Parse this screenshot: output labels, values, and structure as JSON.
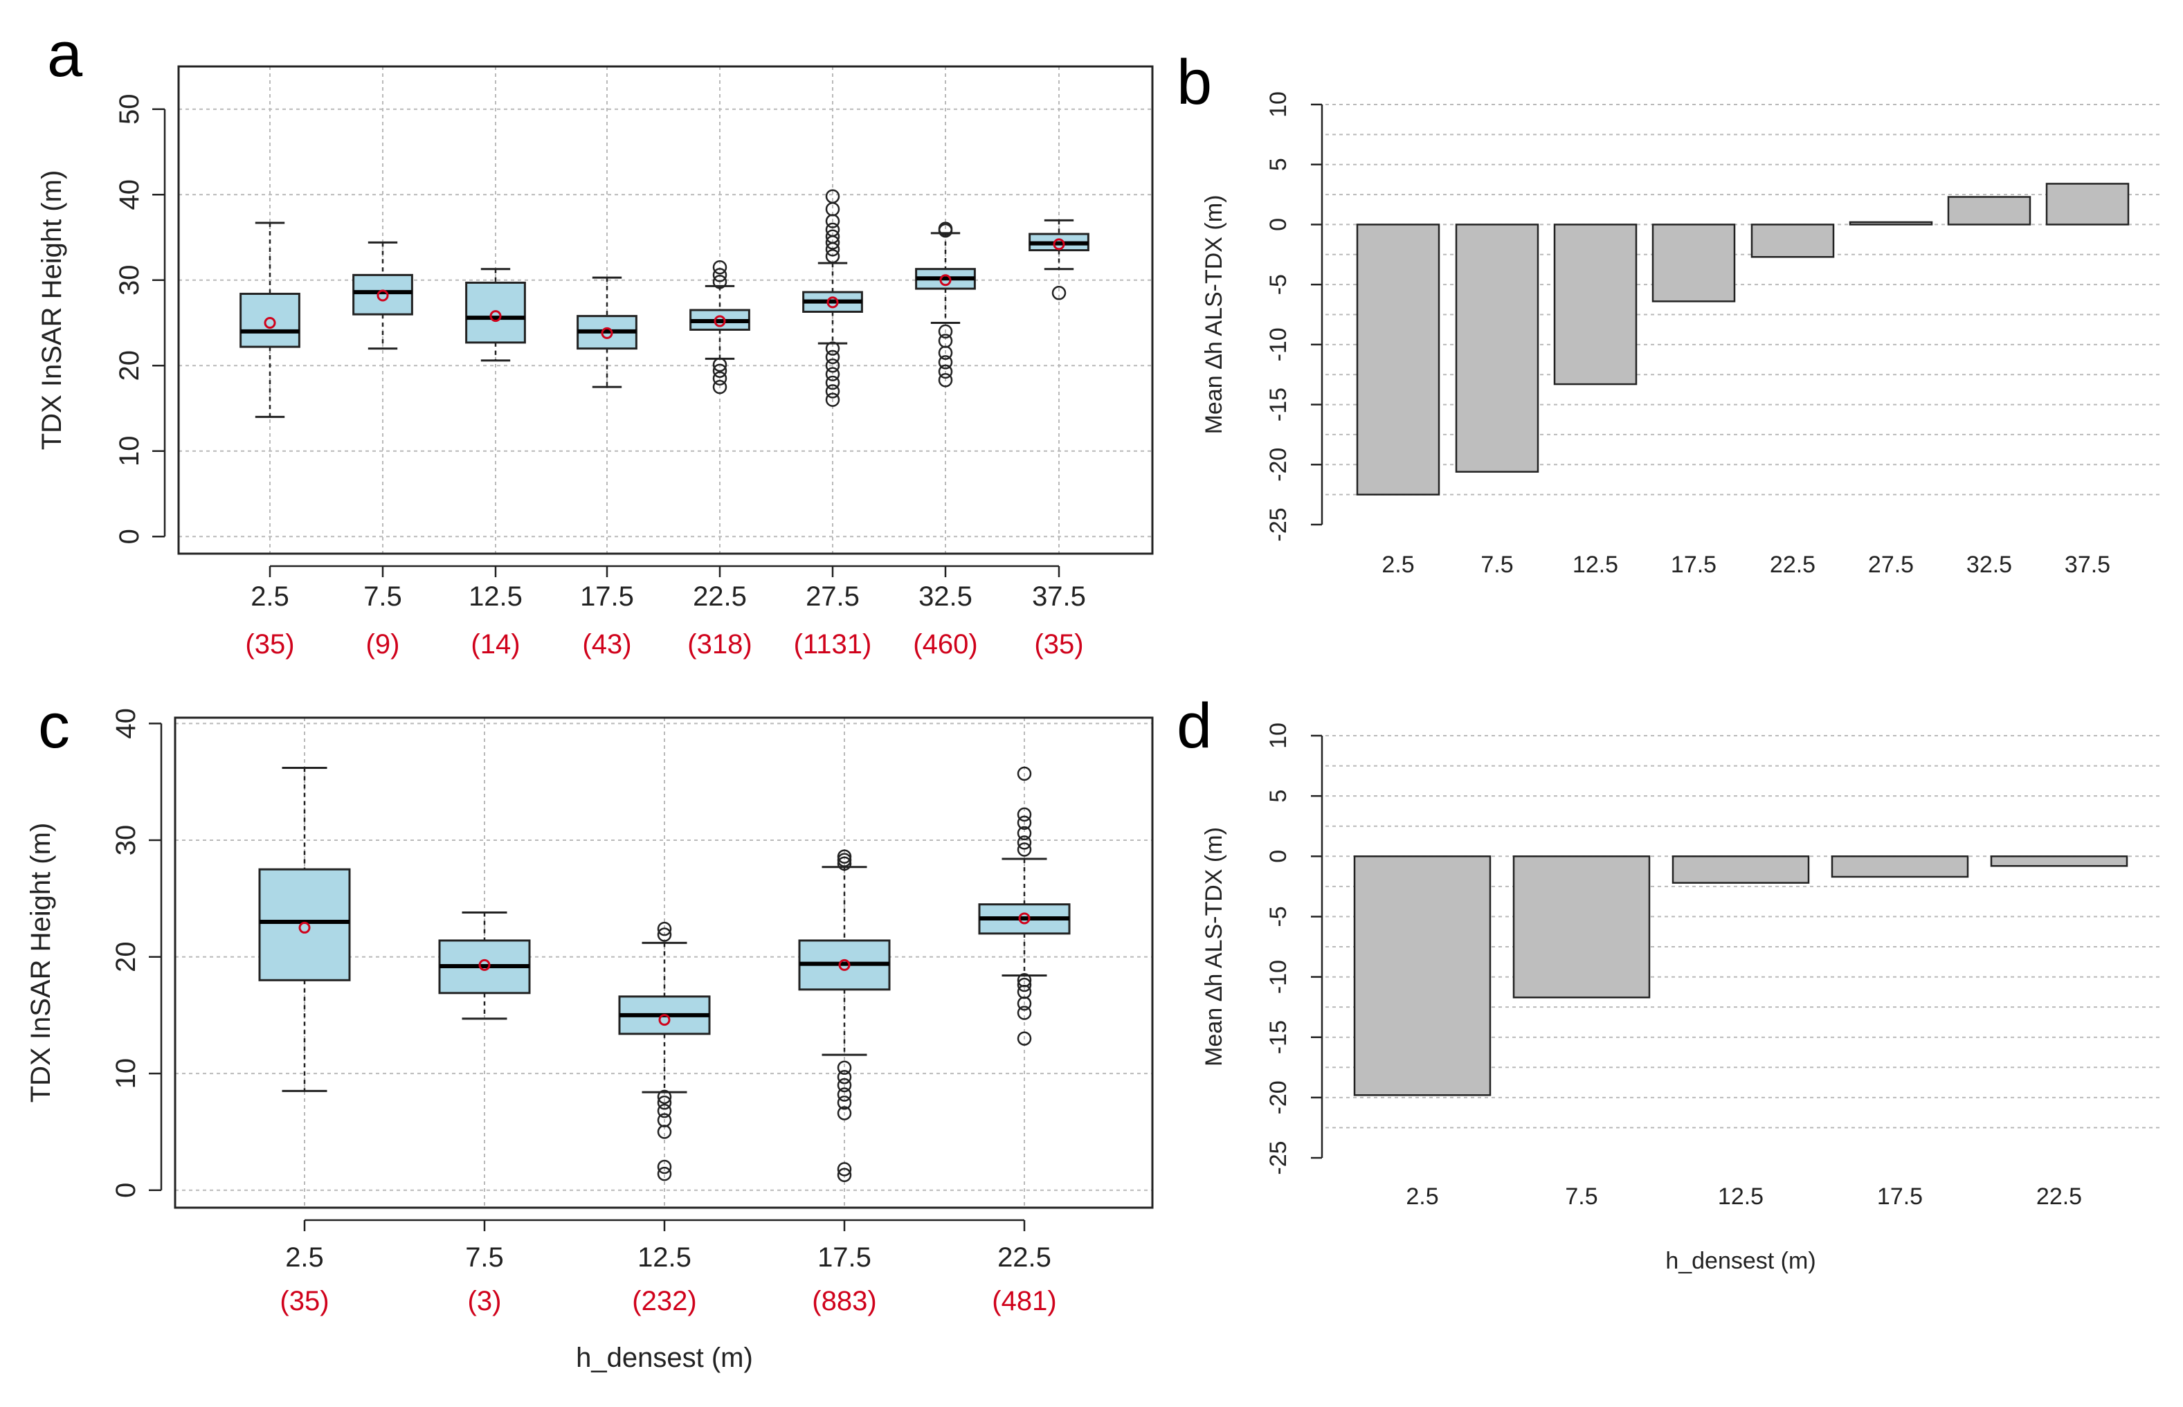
{
  "panel_labels": [
    "a",
    "b",
    "c",
    "d"
  ],
  "colors": {
    "box_fill": "#add8e6",
    "mean_marker": "#d0021b",
    "count_text": "#d0021b",
    "bar_fill": "#bebebe"
  },
  "chart_data": [
    {
      "id": "a",
      "type": "box",
      "title": "",
      "xlabel": "",
      "ylabel": "TDX InSAR Height (m)",
      "ylim": [
        -2,
        55
      ],
      "yticks": [
        0,
        10,
        20,
        30,
        40,
        50
      ],
      "grid": true,
      "categories": [
        "2.5",
        "7.5",
        "12.5",
        "17.5",
        "22.5",
        "27.5",
        "32.5",
        "37.5"
      ],
      "counts": [
        "(35)",
        "(9)",
        "(14)",
        "(43)",
        "(318)",
        "(1131)",
        "(460)",
        "(35)"
      ],
      "boxes": [
        {
          "min": 14,
          "q1": 22.2,
          "median": 24,
          "q3": 28.4,
          "max": 36.7,
          "mean": 25,
          "outliers": []
        },
        {
          "min": 22,
          "q1": 26,
          "median": 28.6,
          "q3": 30.6,
          "max": 34.4,
          "mean": 28.2,
          "outliers": []
        },
        {
          "min": 20.6,
          "q1": 22.7,
          "median": 25.6,
          "q3": 29.7,
          "max": 31.3,
          "mean": 25.8,
          "outliers": []
        },
        {
          "min": 17.5,
          "q1": 22,
          "median": 24,
          "q3": 25.8,
          "max": 30.3,
          "mean": 23.8,
          "outliers": []
        },
        {
          "min": 20.8,
          "q1": 24.2,
          "median": 25.2,
          "q3": 26.5,
          "max": 29.3,
          "mean": 25.2,
          "outliers": [
            17.5,
            18.5,
            19.4,
            20.1,
            29.8,
            30.6,
            31.5
          ]
        },
        {
          "min": 22.6,
          "q1": 26.3,
          "median": 27.5,
          "q3": 28.6,
          "max": 32,
          "mean": 27.4,
          "outliers": [
            16,
            17,
            18,
            19,
            20,
            21,
            22,
            32.8,
            33.6,
            34.4,
            35.1,
            35.9,
            36.9,
            38.3,
            39.8
          ]
        },
        {
          "min": 25,
          "q1": 29,
          "median": 30.2,
          "q3": 31.3,
          "max": 35.5,
          "mean": 30,
          "outliers": [
            18.3,
            19.3,
            20.4,
            21.5,
            22.9,
            24,
            35.8,
            36
          ]
        },
        {
          "min": 31.3,
          "q1": 33.5,
          "median": 34.3,
          "q3": 35.4,
          "max": 37,
          "mean": 34.2,
          "outliers": [
            28.5
          ]
        }
      ]
    },
    {
      "id": "b",
      "type": "bar",
      "title": "",
      "xlabel": "",
      "ylabel": "Mean ∆h ALS-TDX (m)",
      "ylim": [
        -25,
        10
      ],
      "yticks": [
        -25,
        -20,
        -15,
        -10,
        -5,
        0,
        5,
        10
      ],
      "grid": true,
      "categories": [
        "2.5",
        "7.5",
        "12.5",
        "17.5",
        "22.5",
        "27.5",
        "32.5",
        "37.5"
      ],
      "values": [
        -22.5,
        -20.6,
        -13.3,
        -6.4,
        -2.7,
        0.2,
        2.3,
        3.4
      ]
    },
    {
      "id": "c",
      "type": "box",
      "title": "",
      "xlabel": "h_densest (m)",
      "ylabel": "TDX InSAR Height (m)",
      "ylim": [
        -1.5,
        40.5
      ],
      "yticks": [
        0,
        10,
        20,
        30,
        40
      ],
      "grid": true,
      "categories": [
        "2.5",
        "7.5",
        "12.5",
        "17.5",
        "22.5"
      ],
      "counts": [
        "(35)",
        "(3)",
        "(232)",
        "(883)",
        "(481)"
      ],
      "boxes": [
        {
          "min": 8.5,
          "q1": 18,
          "median": 23,
          "q3": 27.5,
          "max": 36.2,
          "mean": 22.5,
          "outliers": []
        },
        {
          "min": 14.7,
          "q1": 16.9,
          "median": 19.2,
          "q3": 21.4,
          "max": 23.8,
          "mean": 19.3,
          "outliers": []
        },
        {
          "min": 8.4,
          "q1": 13.4,
          "median": 15,
          "q3": 16.6,
          "max": 21.2,
          "mean": 14.6,
          "outliers": [
            1.4,
            2,
            5,
            6,
            6.8,
            7.5,
            8,
            21.9,
            22.4
          ]
        },
        {
          "min": 11.6,
          "q1": 17.2,
          "median": 19.4,
          "q3": 21.4,
          "max": 27.7,
          "mean": 19.3,
          "outliers": [
            1.3,
            1.8,
            6.6,
            7.5,
            8.2,
            9,
            9.7,
            10.5,
            28,
            28.3,
            28.6
          ]
        },
        {
          "min": 18.4,
          "q1": 22,
          "median": 23.3,
          "q3": 24.5,
          "max": 28.4,
          "mean": 23.3,
          "outliers": [
            13,
            15.2,
            16,
            17,
            17.6,
            18,
            29.2,
            29.8,
            30.6,
            31.5,
            32.2,
            35.7
          ]
        }
      ]
    },
    {
      "id": "d",
      "type": "bar",
      "title": "",
      "xlabel": "h_densest (m)",
      "ylabel": "Mean ∆h ALS-TDX (m)",
      "ylim": [
        -25,
        10
      ],
      "yticks": [
        -25,
        -20,
        -15,
        -10,
        -5,
        0,
        5,
        10
      ],
      "grid": true,
      "categories": [
        "2.5",
        "7.5",
        "12.5",
        "17.5",
        "22.5"
      ],
      "values": [
        -19.8,
        -11.7,
        -2.2,
        -1.7,
        -0.8
      ]
    }
  ]
}
